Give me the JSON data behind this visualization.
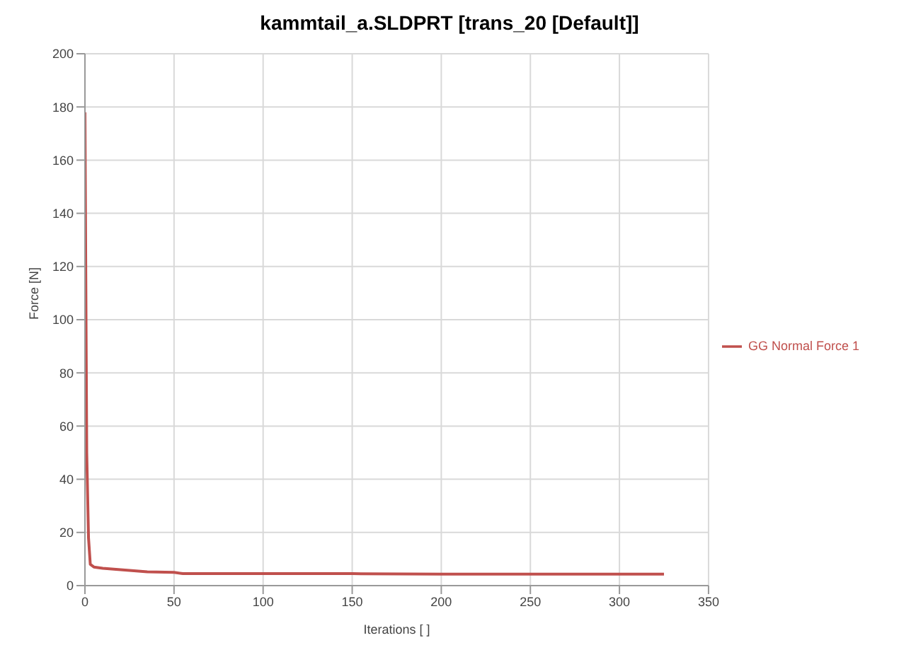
{
  "chart_data": {
    "type": "line",
    "title": "kammtail_a.SLDPRT [trans_20 [Default]]",
    "xlabel": "Iterations [ ]",
    "ylabel": "Force [N]",
    "series": [
      {
        "name": "GG Normal Force 1",
        "color": "#c0504d",
        "x": [
          0,
          1,
          2,
          3,
          5,
          10,
          20,
          35,
          50,
          55,
          100,
          150,
          200,
          250,
          300,
          325
        ],
        "values": [
          178,
          50,
          18,
          8,
          7,
          6.5,
          6,
          5.2,
          5,
          4.5,
          4.5,
          4.5,
          4.3,
          4.3,
          4.3,
          4.3
        ]
      }
    ],
    "xlim": [
      0,
      350
    ],
    "xticks": [
      0,
      50,
      100,
      150,
      200,
      250,
      300,
      350
    ],
    "ylim": [
      0,
      200
    ],
    "yticks": [
      0,
      20,
      40,
      60,
      80,
      100,
      120,
      140,
      160,
      180,
      200
    ],
    "grid": true,
    "legend": "right",
    "marker": "none",
    "line_style": "solid"
  }
}
